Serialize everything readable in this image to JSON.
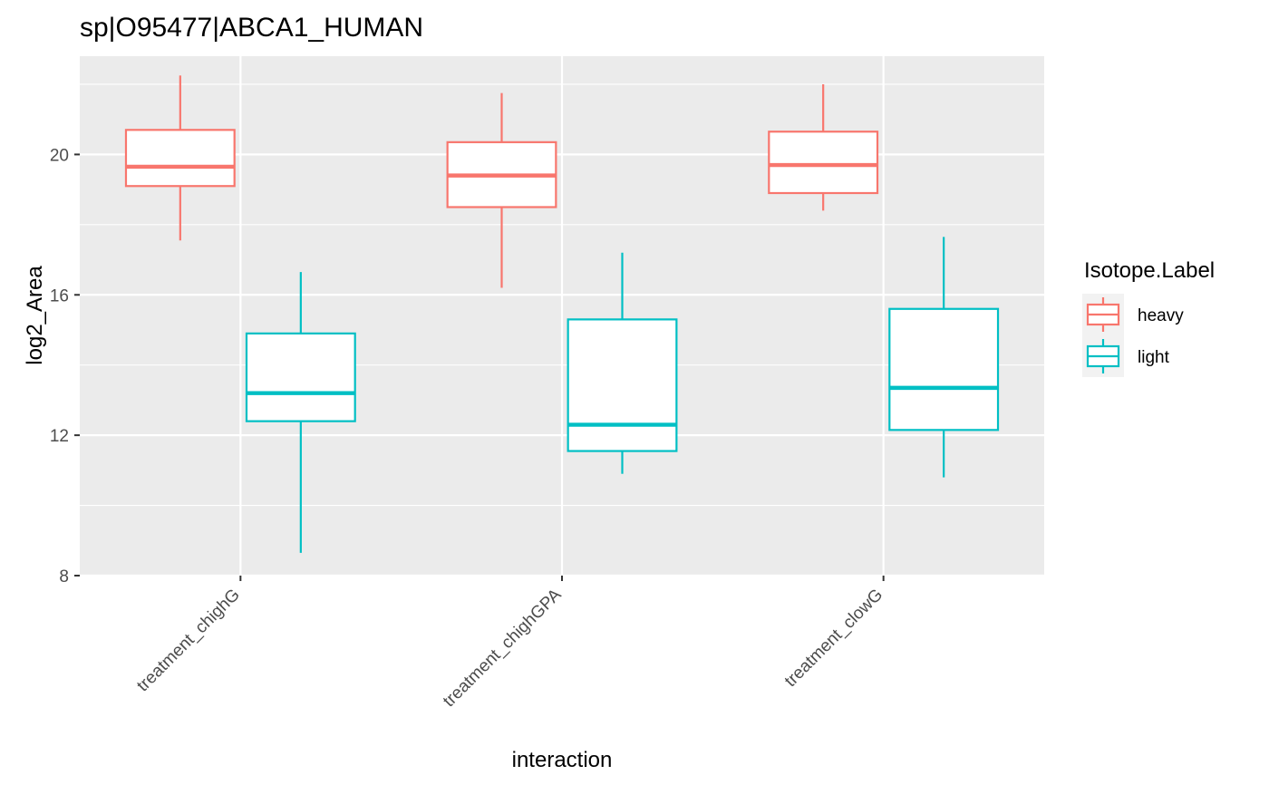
{
  "chart_data": {
    "type": "box",
    "title": "sp|O95477|ABCA1_HUMAN",
    "xlabel": "interaction",
    "ylabel": "log2_Area",
    "categories": [
      "treatment_chighG",
      "treatment_chighGPA",
      "treatment_clowG"
    ],
    "ylim": [
      8,
      22.8
    ],
    "yticks": [
      8,
      12,
      16,
      20
    ],
    "grid": true,
    "legend": {
      "title": "Isotope.Label",
      "position": "right"
    },
    "series": [
      {
        "name": "heavy",
        "color": "#F8766D",
        "boxes": [
          {
            "min": 17.55,
            "q1": 19.1,
            "median": 19.65,
            "q3": 20.7,
            "max": 22.25
          },
          {
            "min": 16.2,
            "q1": 18.5,
            "median": 19.4,
            "q3": 20.35,
            "max": 21.75
          },
          {
            "min": 18.4,
            "q1": 18.9,
            "median": 19.7,
            "q3": 20.65,
            "max": 22.0
          }
        ]
      },
      {
        "name": "light",
        "color": "#00BFC4",
        "boxes": [
          {
            "min": 8.65,
            "q1": 12.4,
            "median": 13.2,
            "q3": 14.9,
            "max": 16.65
          },
          {
            "min": 10.9,
            "q1": 11.55,
            "median": 12.3,
            "q3": 15.3,
            "max": 17.2
          },
          {
            "min": 10.8,
            "q1": 12.15,
            "median": 13.35,
            "q3": 15.6,
            "max": 17.65
          }
        ]
      }
    ]
  }
}
